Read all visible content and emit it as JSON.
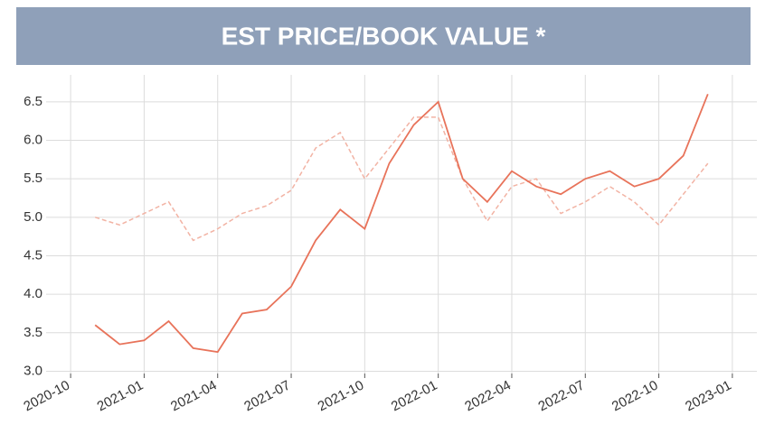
{
  "chart_data": {
    "type": "line",
    "title": "EST PRICE/BOOK VALUE *",
    "x": [
      "2020-11",
      "2020-12",
      "2021-01",
      "2021-02",
      "2021-03",
      "2021-04",
      "2021-05",
      "2021-06",
      "2021-07",
      "2021-08",
      "2021-09",
      "2021-10",
      "2021-11",
      "2021-12",
      "2022-01",
      "2022-02",
      "2022-03",
      "2022-04",
      "2022-05",
      "2022-06",
      "2022-07",
      "2022-08",
      "2022-09",
      "2022-10",
      "2022-11",
      "2022-12"
    ],
    "series": [
      {
        "color": "#e8735a",
        "style": "solid",
        "values": [
          3.6,
          3.35,
          3.4,
          3.65,
          3.3,
          3.25,
          3.75,
          3.8,
          4.1,
          4.7,
          5.1,
          4.85,
          5.7,
          6.2,
          6.5,
          5.5,
          5.2,
          5.6,
          5.4,
          5.3,
          5.5,
          5.6,
          5.4,
          5.5,
          5.8,
          6.6
        ]
      },
      {
        "color": "#f2b3a4",
        "style": "dashed",
        "values": [
          5.0,
          4.9,
          5.05,
          5.2,
          4.7,
          4.85,
          5.05,
          5.15,
          5.35,
          5.9,
          6.1,
          5.5,
          5.9,
          6.3,
          6.3,
          5.5,
          4.95,
          5.4,
          5.5,
          5.05,
          5.2,
          5.4,
          5.2,
          4.9,
          5.3,
          5.7
        ]
      }
    ],
    "xlim": [
      "2020-09",
      "2023-02"
    ],
    "xticks": [
      "2020-10",
      "2021-01",
      "2021-04",
      "2021-07",
      "2021-10",
      "2022-01",
      "2022-04",
      "2022-07",
      "2022-10",
      "2023-01"
    ],
    "ylim": [
      2.97,
      6.85
    ],
    "yticks": [
      {
        "value": 3,
        "label": "3.0"
      },
      {
        "value": 3.5,
        "label": "3.5"
      },
      {
        "value": 4,
        "label": "4.0"
      },
      {
        "value": 4.5,
        "label": "4.5"
      },
      {
        "value": 5,
        "label": "5.0"
      },
      {
        "value": 5.5,
        "label": "5.5"
      },
      {
        "value": 6,
        "label": "6.0"
      },
      {
        "value": 6.5,
        "label": "6.5"
      }
    ],
    "grid": true
  }
}
